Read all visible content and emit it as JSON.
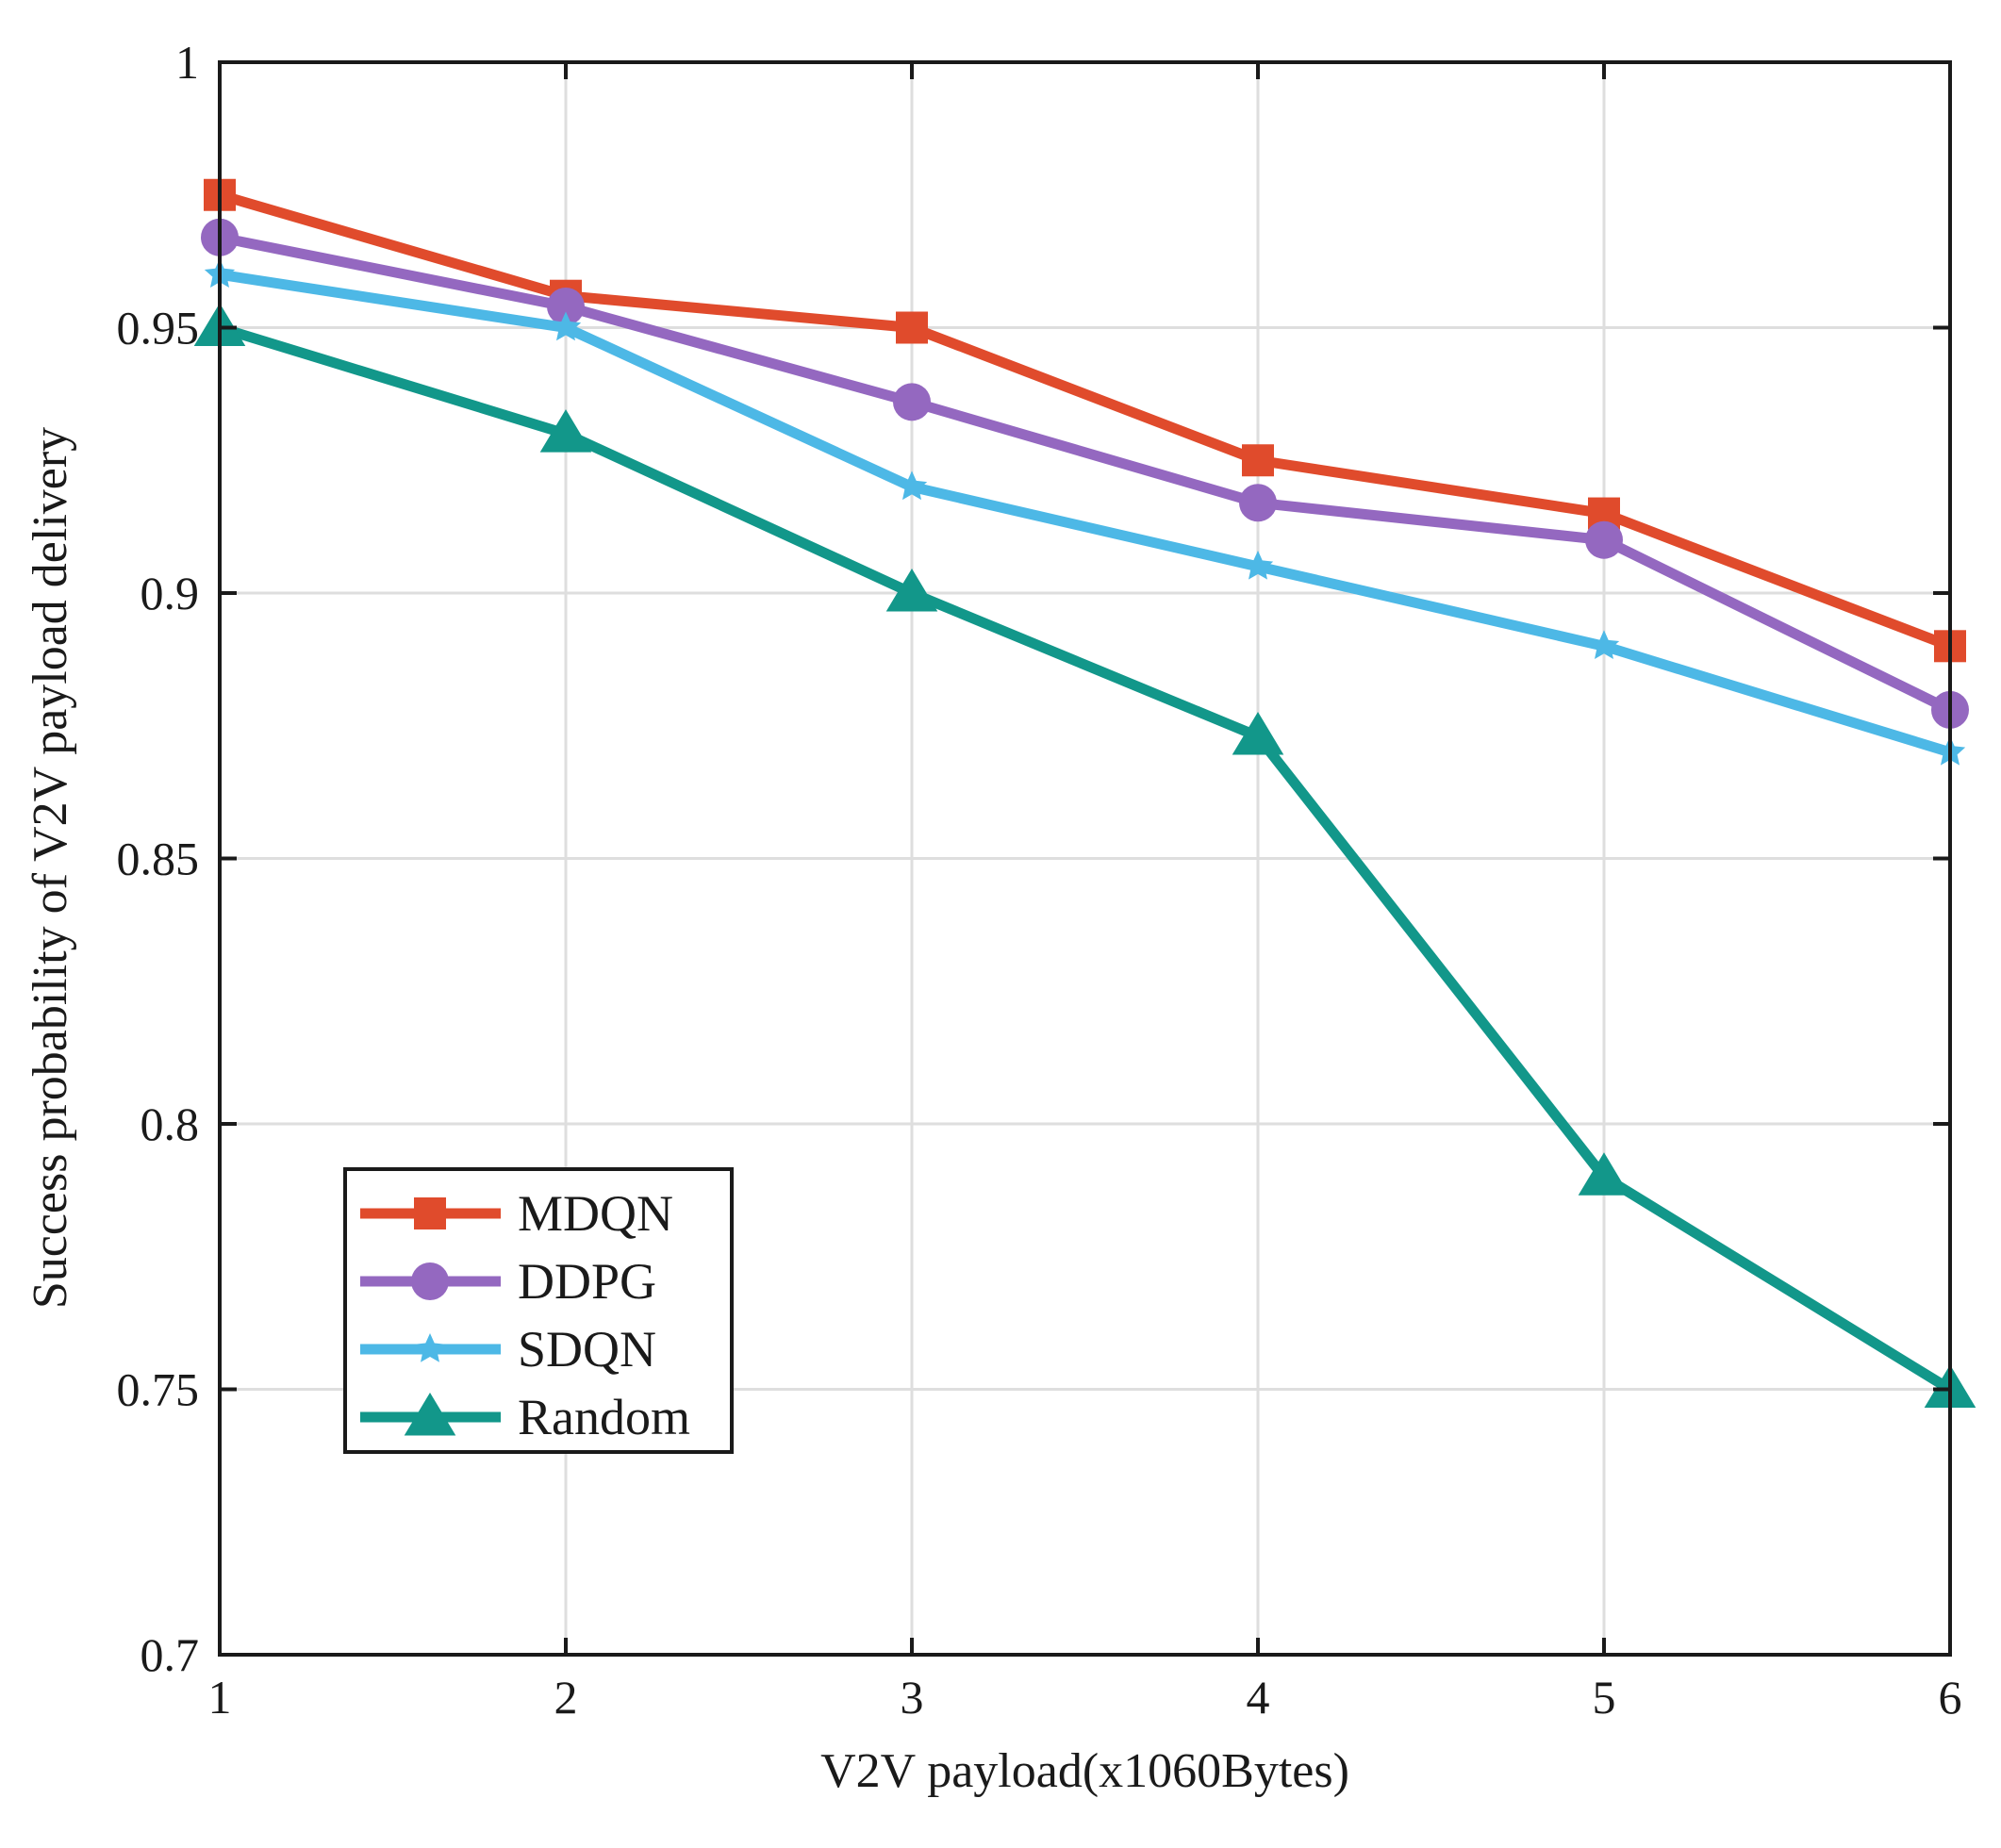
{
  "chart_data": {
    "type": "line",
    "title": "",
    "xlabel": "V2V payload(x1060Bytes)",
    "ylabel": "Success probability of V2V payload delivery",
    "x": [
      1,
      2,
      3,
      4,
      5,
      6
    ],
    "xlim": [
      1,
      6
    ],
    "ylim": [
      0.7,
      1
    ],
    "xticks": [
      "1",
      "2",
      "3",
      "4",
      "5",
      "6"
    ],
    "yticks": [
      "0.7",
      "0.75",
      "0.8",
      "0.85",
      "0.9",
      "0.95",
      "1"
    ],
    "grid": true,
    "legend_position": "lower-left",
    "series": [
      {
        "name": "MDQN",
        "color": "#e04b2c",
        "marker": "square",
        "values": [
          0.975,
          0.956,
          0.95,
          0.925,
          0.915,
          0.89
        ]
      },
      {
        "name": "DDPG",
        "color": "#9468c0",
        "marker": "circle",
        "values": [
          0.967,
          0.954,
          0.936,
          0.917,
          0.91,
          0.878
        ]
      },
      {
        "name": "SDQN",
        "color": "#4db8e6",
        "marker": "star",
        "values": [
          0.96,
          0.95,
          0.92,
          0.905,
          0.89,
          0.87
        ]
      },
      {
        "name": "Random",
        "color": "#12978a",
        "marker": "triangle",
        "values": [
          0.95,
          0.93,
          0.9,
          0.873,
          0.79,
          0.75
        ]
      }
    ]
  }
}
